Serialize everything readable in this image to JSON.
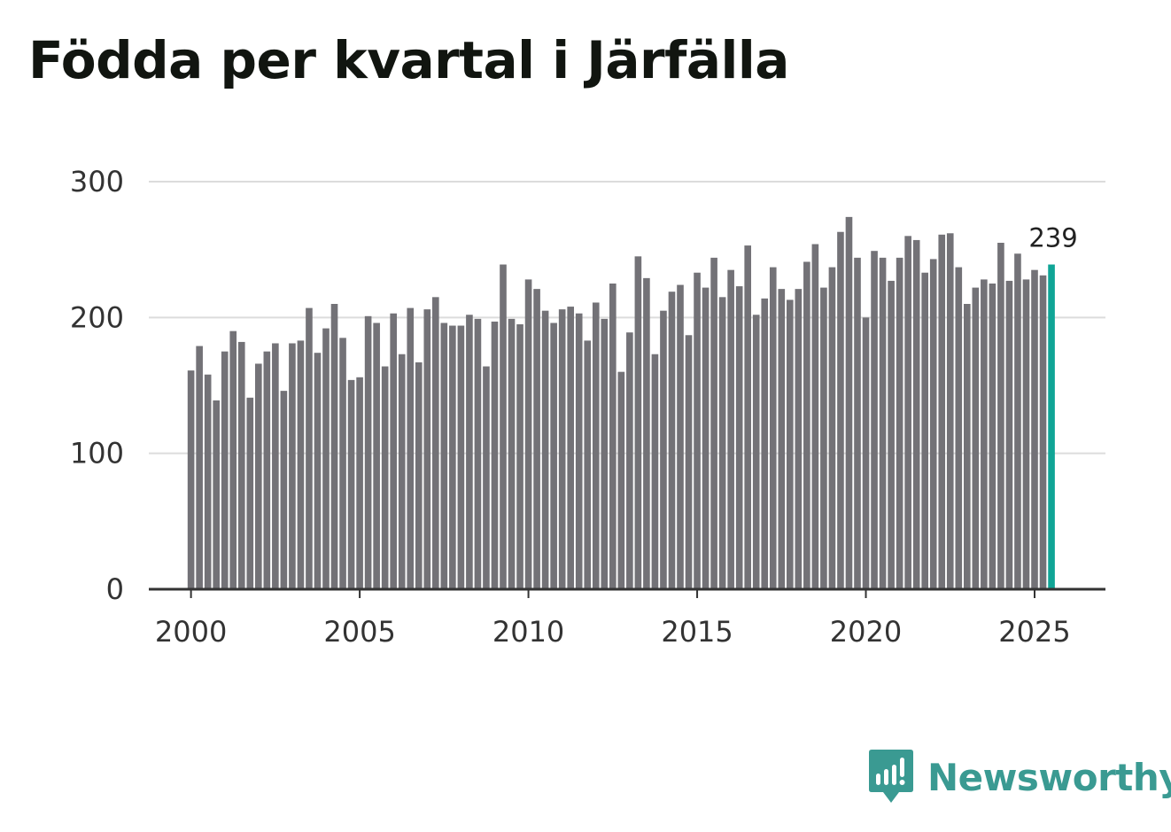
{
  "title": "Födda per kvartal i Järfälla",
  "brand": {
    "name": "Newsworthy",
    "icon": "newsworthy-logo-icon",
    "color": "#3a9a92"
  },
  "chart_data": {
    "type": "bar",
    "title": "Födda per kvartal i Järfälla",
    "xlabel": "",
    "ylabel": "",
    "ylim": [
      0,
      300
    ],
    "yticks": [
      0,
      100,
      200,
      300
    ],
    "xlim": [
      1998.75,
      2027.1
    ],
    "xticks": [
      2000,
      2005,
      2010,
      2015,
      2020,
      2025
    ],
    "grid": true,
    "start_year": 2000,
    "bar_color": "#737277",
    "highlight_color": "#10a596",
    "highlight_label": "239",
    "values": [
      161,
      179,
      158,
      139,
      175,
      190,
      182,
      141,
      166,
      175,
      181,
      146,
      181,
      183,
      207,
      174,
      192,
      210,
      185,
      154,
      156,
      201,
      196,
      164,
      203,
      173,
      207,
      167,
      206,
      215,
      196,
      194,
      194,
      202,
      199,
      164,
      197,
      239,
      199,
      195,
      228,
      221,
      205,
      196,
      206,
      208,
      203,
      183,
      211,
      199,
      225,
      160,
      189,
      245,
      229,
      173,
      205,
      219,
      224,
      187,
      233,
      222,
      244,
      215,
      235,
      223,
      253,
      202,
      214,
      237,
      221,
      213,
      221,
      241,
      254,
      222,
      237,
      263,
      274,
      244,
      200,
      249,
      244,
      227,
      244,
      260,
      257,
      233,
      243,
      261,
      262,
      237,
      210,
      222,
      228,
      225,
      255,
      227,
      247,
      228,
      235,
      231,
      239
    ]
  }
}
